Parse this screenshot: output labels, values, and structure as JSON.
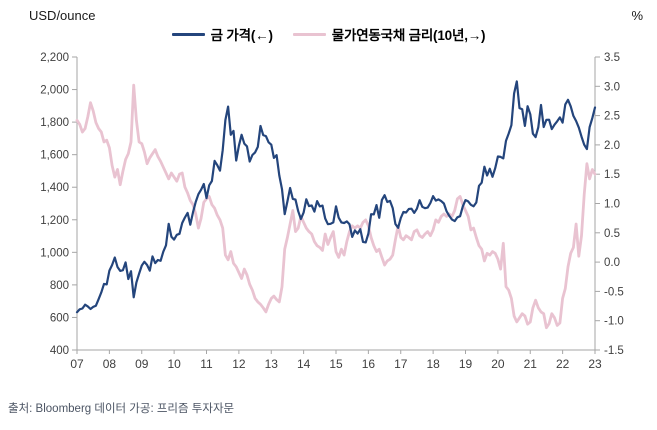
{
  "header": {
    "left_axis_title": "USD/ounce",
    "right_axis_title": "%"
  },
  "legend": [
    {
      "label": "금 가격(←)",
      "color": "#24457C"
    },
    {
      "label": "물가연동국채 금리(10년,→)",
      "color": "#E9C3D1"
    }
  ],
  "source": "출처: Bloomberg 데이터 가공: 프리즘 투자자문",
  "colors": {
    "axis_line": "#a6a6a6",
    "tick_label": "#404040",
    "background": "#ffffff"
  },
  "chart_data": {
    "type": "line",
    "title": "",
    "grid": false,
    "legend_position": "top",
    "x_tick_labels": [
      "07",
      "08",
      "09",
      "10",
      "11",
      "12",
      "13",
      "14",
      "15",
      "16",
      "17",
      "18",
      "19",
      "20",
      "21",
      "22",
      "23"
    ],
    "x_range_years": [
      2007,
      2023
    ],
    "x_step_months": 1,
    "left_axis": {
      "title": "USD/ounce",
      "min": 400,
      "max": 2200,
      "tick_labels_top_to_bottom": [
        "2,200",
        "2,000",
        "1,800",
        "1,600",
        "1,400",
        "1,200",
        "1,000",
        "800",
        "600",
        "400"
      ]
    },
    "right_axis": {
      "title": "%",
      "min": -1.5,
      "max": 3.5,
      "tick_labels_top_to_bottom": [
        "3.5",
        "3.0",
        "2.5",
        "2.0",
        "1.5",
        "1.0",
        "0.5",
        "0.0",
        "-0.5",
        "-1.0",
        "-1.5"
      ]
    },
    "series": [
      {
        "name": "물가연동국채 금리(10년,→)",
        "axis": "right",
        "color": "#E9C3D1",
        "stroke_width": 2.8,
        "values": [
          2.42,
          2.35,
          2.22,
          2.28,
          2.48,
          2.72,
          2.58,
          2.38,
          2.28,
          2.22,
          2.05,
          2.08,
          1.95,
          1.65,
          1.45,
          1.58,
          1.32,
          1.55,
          1.75,
          1.85,
          2.05,
          3.02,
          2.42,
          2.05,
          2.02,
          1.88,
          1.68,
          1.78,
          1.85,
          1.92,
          1.8,
          1.72,
          1.62,
          1.52,
          1.42,
          1.52,
          1.45,
          1.38,
          1.5,
          1.52,
          1.28,
          1.18,
          1.05,
          0.98,
          0.82,
          0.58,
          0.75,
          1.02,
          1.08,
          1.12,
          0.98,
          0.92,
          0.8,
          0.72,
          0.58,
          0.12,
          0.04,
          0.18,
          -0.02,
          -0.08,
          -0.18,
          -0.28,
          -0.12,
          -0.22,
          -0.38,
          -0.48,
          -0.62,
          -0.68,
          -0.72,
          -0.78,
          -0.85,
          -0.72,
          -0.62,
          -0.58,
          -0.64,
          -0.68,
          -0.42,
          0.22,
          0.42,
          0.65,
          0.88,
          0.52,
          0.58,
          0.78,
          0.68,
          0.58,
          0.52,
          0.48,
          0.35,
          0.28,
          0.25,
          0.2,
          0.48,
          0.3,
          0.42,
          0.52,
          0.18,
          0.08,
          0.22,
          0.12,
          0.35,
          0.52,
          0.62,
          0.58,
          0.62,
          0.58,
          0.68,
          0.72,
          0.62,
          0.42,
          0.28,
          0.18,
          0.22,
          0.08,
          -0.05,
          0.02,
          0.05,
          0.12,
          0.38,
          0.62,
          0.42,
          0.38,
          0.45,
          0.42,
          0.38,
          0.52,
          0.55,
          0.45,
          0.42,
          0.48,
          0.52,
          0.45,
          0.55,
          0.72,
          0.68,
          0.78,
          0.82,
          0.78,
          0.82,
          0.78,
          0.88,
          1.08,
          1.12,
          0.98,
          0.88,
          0.78,
          0.55,
          0.58,
          0.42,
          0.28,
          0.22,
          0.02,
          0.15,
          0.12,
          0.18,
          0.15,
          0.05,
          -0.12,
          0.32,
          -0.42,
          -0.48,
          -0.62,
          -0.92,
          -1.02,
          -0.95,
          -0.88,
          -0.92,
          -1.06,
          -1.02,
          -0.78,
          -0.65,
          -0.78,
          -0.85,
          -0.88,
          -1.12,
          -1.05,
          -0.88,
          -0.95,
          -1.08,
          -1.04,
          -0.62,
          -0.45,
          -0.08,
          0.15,
          0.25,
          0.65,
          0.1,
          0.45,
          1.15,
          1.68,
          1.42,
          1.58,
          1.5
        ]
      },
      {
        "name": "금 가격(←)",
        "axis": "left",
        "color": "#24457C",
        "stroke_width": 2.2,
        "values": [
          632,
          650,
          655,
          678,
          668,
          652,
          665,
          672,
          712,
          754,
          806,
          803,
          888,
          922,
          968,
          910,
          886,
          890,
          938,
          836,
          884,
          724,
          815,
          869,
          919,
          942,
          922,
          888,
          975,
          934,
          953,
          948,
          1004,
          1043,
          1175,
          1096,
          1078,
          1108,
          1114,
          1180,
          1214,
          1242,
          1170,
          1246,
          1309,
          1357,
          1385,
          1420,
          1333,
          1412,
          1438,
          1562,
          1535,
          1502,
          1628,
          1813,
          1895,
          1722,
          1746,
          1564,
          1655,
          1722,
          1668,
          1651,
          1558,
          1598,
          1614,
          1648,
          1776,
          1720,
          1714,
          1676,
          1661,
          1580,
          1597,
          1472,
          1388,
          1235,
          1312,
          1395,
          1328,
          1324,
          1253,
          1205,
          1244,
          1326,
          1284,
          1288,
          1250,
          1315,
          1282,
          1287,
          1208,
          1173,
          1175,
          1184,
          1283,
          1213,
          1184,
          1180,
          1190,
          1172,
          1095,
          1135,
          1115,
          1142,
          1064,
          1061,
          1116,
          1234,
          1233,
          1290,
          1212,
          1322,
          1351,
          1309,
          1316,
          1272,
          1174,
          1151,
          1211,
          1248,
          1245,
          1266,
          1268,
          1242,
          1268,
          1320,
          1280,
          1271,
          1275,
          1303,
          1345,
          1318,
          1325,
          1315,
          1300,
          1252,
          1224,
          1201,
          1192,
          1215,
          1222,
          1282,
          1321,
          1313,
          1292,
          1283,
          1306,
          1409,
          1428,
          1526,
          1472,
          1513,
          1464,
          1517,
          1589,
          1586,
          1577,
          1686,
          1730,
          1781,
          1976,
          2050,
          1886,
          1879,
          1777,
          1898,
          1848,
          1729,
          1708,
          1768,
          1905,
          1770,
          1814,
          1815,
          1757,
          1784,
          1805,
          1829,
          1797,
          1909,
          1937,
          1897,
          1838,
          1807,
          1766,
          1711,
          1661,
          1634,
          1769,
          1824,
          1890
        ]
      }
    ]
  }
}
